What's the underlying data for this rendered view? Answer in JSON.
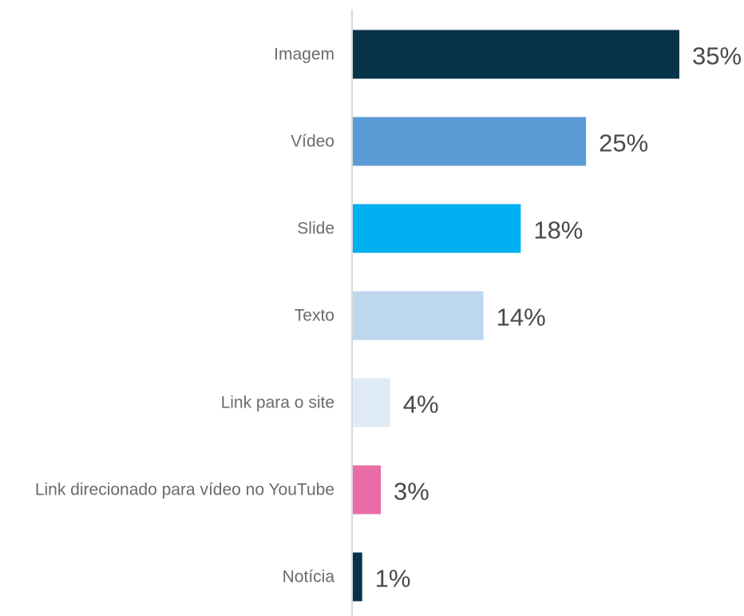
{
  "chart_data": {
    "type": "bar",
    "orientation": "horizontal",
    "categories": [
      "Imagem",
      "Vídeo",
      "Slide",
      "Texto",
      "Link para o site",
      "Link direcionado para vídeo no YouTube",
      "Notícia"
    ],
    "values": [
      35,
      25,
      18,
      14,
      4,
      3,
      1
    ],
    "value_labels": [
      "35%",
      "25%",
      "18%",
      "14%",
      "4%",
      "3%",
      "1%"
    ],
    "bar_colors": [
      "#073349",
      "#5b9bd5",
      "#00b0f0",
      "#bdd7ee",
      "#deebf7",
      "#e96ca6",
      "#073349"
    ],
    "xlim": [
      0,
      35
    ],
    "title": "",
    "xlabel": "",
    "ylabel": "",
    "grid": false,
    "legend": "none"
  }
}
